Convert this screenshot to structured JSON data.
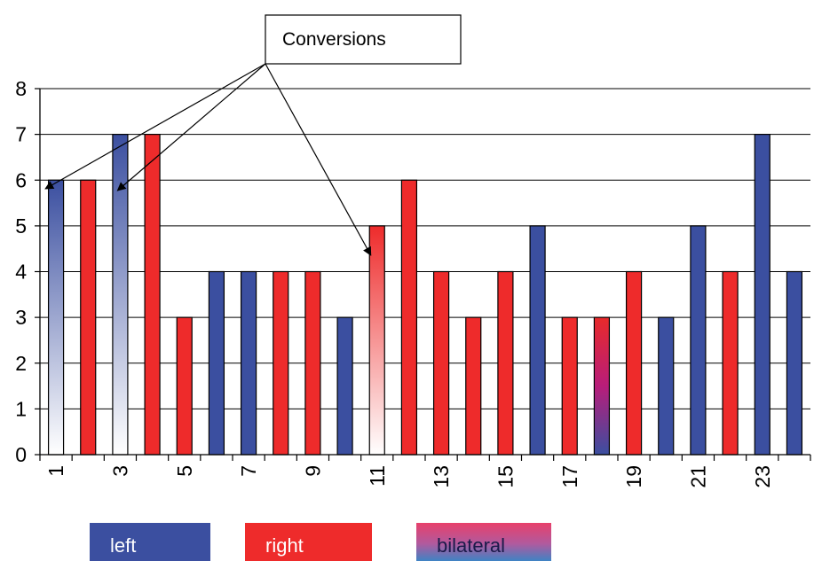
{
  "chart_data": {
    "type": "bar",
    "title": "",
    "xlabel": "",
    "ylabel": "",
    "ylim": [
      0,
      8
    ],
    "yticks": [
      0,
      1,
      2,
      3,
      4,
      5,
      6,
      7,
      8
    ],
    "grid": true,
    "x": [
      1,
      2,
      3,
      4,
      5,
      6,
      7,
      8,
      9,
      10,
      11,
      12,
      13,
      14,
      15,
      16,
      17,
      18,
      19,
      20,
      21,
      22,
      23,
      24
    ],
    "xtick_labels": [
      "1",
      "3",
      "5",
      "7",
      "9",
      "11",
      "13",
      "15",
      "17",
      "19",
      "21",
      "23"
    ],
    "xtick_values": [
      1,
      3,
      5,
      7,
      9,
      11,
      13,
      15,
      17,
      19,
      21,
      23
    ],
    "values": [
      6,
      6,
      7,
      7,
      3,
      4,
      4,
      4,
      4,
      3,
      5,
      6,
      4,
      3,
      4,
      5,
      3,
      3,
      4,
      3,
      5,
      4,
      7,
      4
    ],
    "categories_per_bar": [
      "left-conversion",
      "right",
      "left-conversion",
      "right",
      "right",
      "left",
      "left",
      "right",
      "right",
      "left",
      "right-conversion",
      "right",
      "right",
      "right",
      "right",
      "left",
      "right",
      "bilateral",
      "right",
      "left",
      "left",
      "right",
      "left",
      "left"
    ],
    "legend": [
      {
        "name": "left",
        "color": "#3b4fa0",
        "gradient_to": "#3b4fa0"
      },
      {
        "name": "right",
        "color": "#ee2b2b",
        "gradient_to": "#ee2b2b"
      },
      {
        "name": "bilateral",
        "color": "#e8406b",
        "gradient_to": "#4a78c0"
      }
    ],
    "legend_position": "bottom",
    "annotation": {
      "text": "Conversions",
      "points_to": [
        1,
        3,
        11
      ]
    },
    "colors": {
      "left": "#3b4fa0",
      "right": "#ee2b2b",
      "bilateral_top": "#e82a2a",
      "bilateral_bottom": "#3b4fa0"
    }
  }
}
